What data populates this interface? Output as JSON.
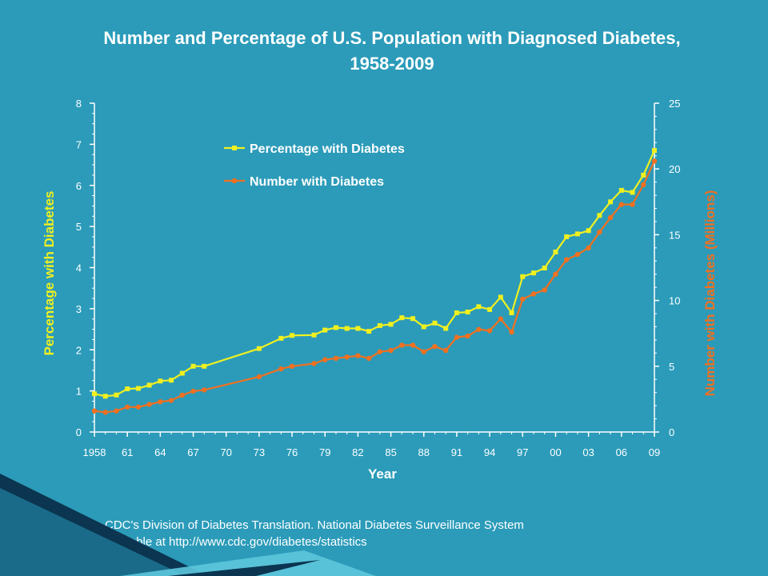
{
  "slide": {
    "title_line1": "Number and Percentage of U.S. Population with Diagnosed Diabetes,",
    "title_line2": "1958-2009",
    "source_line1": "CDC's Division of Diabetes Translation. National Diabetes Surveillance System",
    "source_line2": "available at http://www.cdc.gov/diabetes/statistics"
  },
  "colors": {
    "background": "#2b9bb9",
    "percentage_series": "#f0f020",
    "number_series": "#f07020",
    "axis": "#ffffff"
  },
  "chart_data": {
    "type": "line",
    "title": "Number and Percentage of U.S. Population with Diagnosed Diabetes, 1958-2009",
    "xlabel": "Year",
    "ylabel_left": "Percentage with Diabetes",
    "ylabel_right": "Number with Diabetes (Millions)",
    "xlim": [
      1958,
      2009
    ],
    "ylim_left": [
      0,
      8
    ],
    "ylim_right": [
      0,
      25
    ],
    "x_ticks": [
      1958,
      1961,
      1964,
      1967,
      1970,
      1973,
      1976,
      1979,
      1982,
      1985,
      1988,
      1991,
      1994,
      1997,
      2000,
      2003,
      2006,
      2009
    ],
    "x_tick_labels": [
      "1958",
      "61",
      "64",
      "67",
      "70",
      "73",
      "76",
      "79",
      "82",
      "85",
      "88",
      "91",
      "94",
      "97",
      "00",
      "03",
      "06",
      "09"
    ],
    "y_left_ticks": [
      "0",
      "1",
      "2",
      "3",
      "4",
      "5",
      "6",
      "7",
      "8"
    ],
    "y_right_ticks": [
      "0",
      "5",
      "10",
      "15",
      "20",
      "25"
    ],
    "legend_position": "top-center",
    "grid": false,
    "x": [
      1958,
      1959,
      1960,
      1961,
      1962,
      1963,
      1964,
      1965,
      1966,
      1967,
      1968,
      1973,
      1975,
      1976,
      1978,
      1979,
      1980,
      1981,
      1982,
      1983,
      1984,
      1985,
      1986,
      1987,
      1988,
      1989,
      1990,
      1991,
      1992,
      1993,
      1994,
      1995,
      1996,
      1997,
      1998,
      1999,
      2000,
      2001,
      2002,
      2003,
      2004,
      2005,
      2006,
      2007,
      2008,
      2009
    ],
    "series": [
      {
        "name": "Percentage with Diabetes",
        "axis": "left",
        "values": [
          0.93,
          0.87,
          0.9,
          1.05,
          1.06,
          1.14,
          1.24,
          1.26,
          1.43,
          1.6,
          1.6,
          2.03,
          2.28,
          2.35,
          2.36,
          2.48,
          2.54,
          2.52,
          2.52,
          2.45,
          2.59,
          2.62,
          2.78,
          2.76,
          2.56,
          2.65,
          2.52,
          2.9,
          2.92,
          3.05,
          2.98,
          3.28,
          2.9,
          3.78,
          3.87,
          3.99,
          4.38,
          4.75,
          4.82,
          4.9,
          5.27,
          5.6,
          5.88,
          5.83,
          6.25,
          6.85
        ]
      },
      {
        "name": "Number with Diabetes",
        "axis": "right",
        "values": [
          1.6,
          1.5,
          1.6,
          1.9,
          1.9,
          2.1,
          2.3,
          2.4,
          2.8,
          3.1,
          3.2,
          4.2,
          4.8,
          5.0,
          5.2,
          5.5,
          5.6,
          5.7,
          5.8,
          5.6,
          6.1,
          6.2,
          6.6,
          6.6,
          6.1,
          6.5,
          6.2,
          7.2,
          7.3,
          7.8,
          7.7,
          8.6,
          7.6,
          10.1,
          10.5,
          10.8,
          12.0,
          13.1,
          13.5,
          14.0,
          15.2,
          16.3,
          17.3,
          17.3,
          18.8,
          20.6
        ]
      }
    ]
  }
}
